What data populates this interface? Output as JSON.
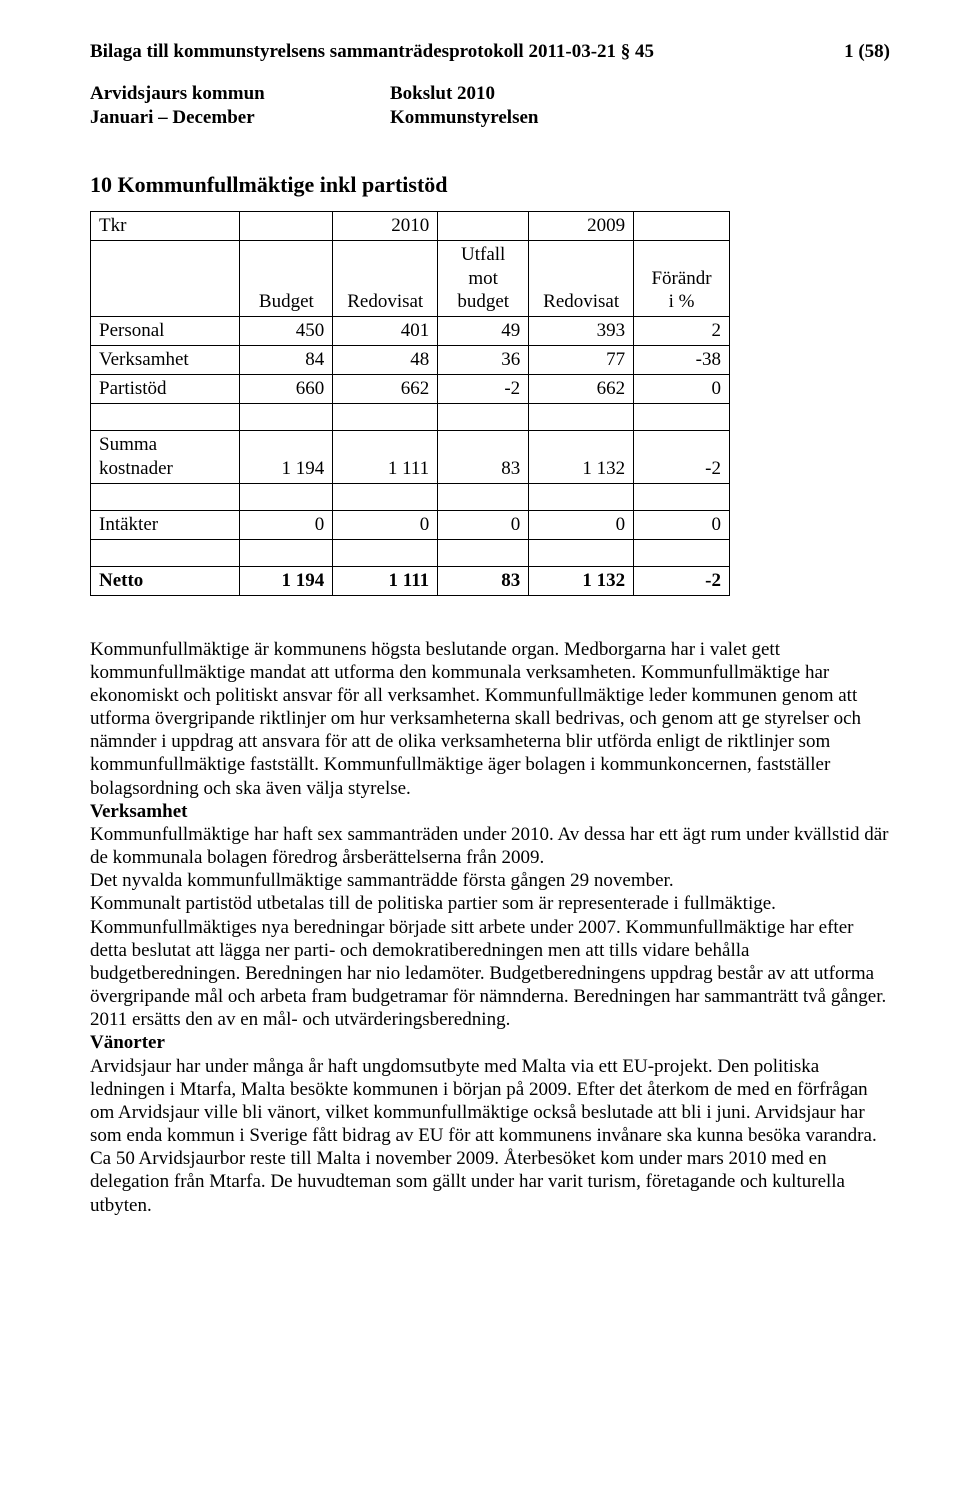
{
  "header": {
    "title_line": "Bilaga till kommunstyrelsens sammanträdesprotokoll 2011-03-21 § 45",
    "page_num": "1 (58)",
    "org_left_1": "Arvidsjaurs kommun",
    "org_left_2": "Januari – December",
    "org_right_1": "Bokslut 2010",
    "org_right_2": "Kommunstyrelsen"
  },
  "document": {
    "section_title": "10 Kommunfullmäktige inkl partistöd",
    "table": {
      "row_tkr": "Tkr",
      "year_a": "2010",
      "year_b": "2009",
      "hdr_budget": "Budget",
      "hdr_redovisat": "Redovisat",
      "hdr_utfall_l1": "Utfall",
      "hdr_utfall_l2": "mot",
      "hdr_utfall_l3": "budget",
      "hdr_redovisat2": "Redovisat",
      "hdr_forandr_l1": "Förändr",
      "hdr_forandr_l2": "i %",
      "rows": {
        "personal": {
          "label": "Personal",
          "c1": "450",
          "c2": "401",
          "c3": "49",
          "c4": "393",
          "c5": "2"
        },
        "verksamhet": {
          "label": "Verksamhet",
          "c1": "84",
          "c2": "48",
          "c3": "36",
          "c4": "77",
          "c5": "-38"
        },
        "partistod": {
          "label": "Partistöd",
          "c1": "660",
          "c2": "662",
          "c3": "-2",
          "c4": "662",
          "c5": "0"
        },
        "summa": {
          "label": "Summa kostnader",
          "c1": "1 194",
          "c2": "1 111",
          "c3": "83",
          "c4": "1 132",
          "c5": "-2"
        },
        "intakter": {
          "label": "Intäkter",
          "c1": "0",
          "c2": "0",
          "c3": "0",
          "c4": "0",
          "c5": "0"
        },
        "netto": {
          "label": "Netto",
          "c1": "1 194",
          "c2": "1 111",
          "c3": "83",
          "c4": "1 132",
          "c5": "-2"
        }
      }
    },
    "para_intro": "Kommunfullmäktige är kommunens högsta beslutande organ. Medborgarna har i valet gett kommunfullmäktige mandat att utforma den kommunala verksamheten. Kommunfullmäktige har ekonomiskt och politiskt ansvar för all verksamhet. Kommunfullmäktige leder kommunen genom att utforma övergripande riktlinjer om hur verksamheterna skall bedrivas, och genom att ge styrelser och nämnder i uppdrag att ansvara för att de olika verksamheterna blir utförda enligt de riktlinjer som kommunfullmäktige fastställt. Kommunfullmäktige äger bolagen i kommunkoncernen, fastställer bolagsordning och ska även välja styrelse.",
    "verksamhet_head": "Verksamhet",
    "para_verksamhet": "Kommunfullmäktige har haft sex sammanträden under 2010. Av dessa har ett ägt rum under kvällstid där de kommunala bolagen föredrog årsberättelserna från 2009.\nDet nyvalda kommunfullmäktige sammanträdde första gången 29 november.\nKommunalt partistöd utbetalas till de politiska partier som är representerade i fullmäktige.\nKommunfullmäktiges nya beredningar började sitt arbete under 2007. Kommunfullmäktige har efter detta beslutat att lägga ner parti- och demokratiberedningen men att tills vidare behålla budgetberedningen. Beredningen har nio ledamöter. Budgetberedningens uppdrag består av att utforma övergripande mål och arbeta fram budgetramar för nämnderna. Beredningen har sammanträtt två gånger.\n2011 ersätts den av en mål- och utvärderingsberedning.",
    "vanorter_head": "Vänorter",
    "para_vanorter": "Arvidsjaur har under många år haft ungdomsutbyte med Malta via ett EU-projekt. Den politiska ledningen i Mtarfa, Malta besökte kommunen i början på 2009. Efter det återkom de med en förfrågan om Arvidsjaur ville bli vänort, vilket kommunfullmäktige också beslutade att bli i juni. Arvidsjaur har som enda kommun i Sverige fått bidrag av EU för att kommunens invånare ska kunna besöka varandra. Ca 50 Arvidsjaurbor reste till Malta i november 2009. Återbesöket kom under mars 2010 med en delegation från Mtarfa. De huvudteman som gällt under har varit turism, företagande och kulturella utbyten."
  }
}
